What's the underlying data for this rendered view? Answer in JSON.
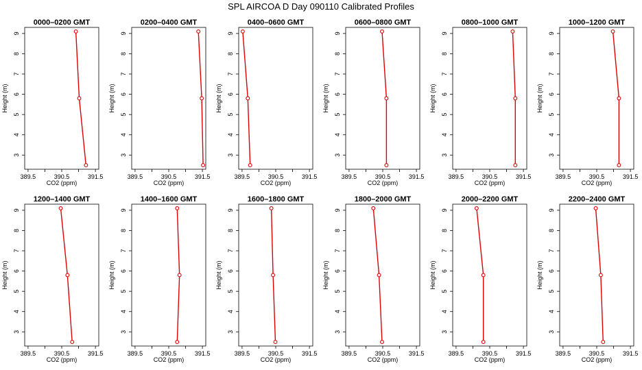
{
  "title": "SPL AIRCOA D  Day 090110  Calibrated Profiles",
  "chart_data": {
    "type": "line",
    "xlabel": "CO2 (ppm)",
    "ylabel": "Height (m)",
    "xlim": [
      389.4,
      391.6
    ],
    "ylim": [
      2.3,
      9.3
    ],
    "xticks": [
      "389.5",
      "390",
      "390.5",
      "391",
      "391.5"
    ],
    "yticks": [
      "3",
      "4",
      "5",
      "6",
      "7",
      "8",
      "9"
    ],
    "heights": [
      9.1,
      5.8,
      2.5
    ],
    "line_color": "#dd0000",
    "panels": [
      {
        "title": "0000–0200 GMT",
        "values": [
          390.92,
          391.02,
          391.22
        ]
      },
      {
        "title": "0200–0400 GMT",
        "values": [
          391.38,
          391.48,
          391.52
        ]
      },
      {
        "title": "0400–0600 GMT",
        "values": [
          389.52,
          389.67,
          389.74
        ]
      },
      {
        "title": "0600–0800 GMT",
        "values": [
          390.48,
          390.61,
          390.61
        ]
      },
      {
        "title": "0800–1000 GMT",
        "values": [
          391.18,
          391.26,
          391.26
        ]
      },
      {
        "title": "1000–1200 GMT",
        "values": [
          390.98,
          391.16,
          391.16
        ]
      },
      {
        "title": "1200–1400 GMT",
        "values": [
          390.47,
          390.67,
          390.81
        ]
      },
      {
        "title": "1400–1600 GMT",
        "values": [
          390.75,
          390.82,
          390.75
        ]
      },
      {
        "title": "1600–1800 GMT",
        "values": [
          390.37,
          390.42,
          390.49
        ]
      },
      {
        "title": "1800–2000 GMT",
        "values": [
          390.22,
          390.39,
          390.48
        ]
      },
      {
        "title": "2000–2200 GMT",
        "values": [
          390.11,
          390.31,
          390.31
        ]
      },
      {
        "title": "2200–2400 GMT",
        "values": [
          390.47,
          390.62,
          390.69
        ]
      }
    ]
  }
}
